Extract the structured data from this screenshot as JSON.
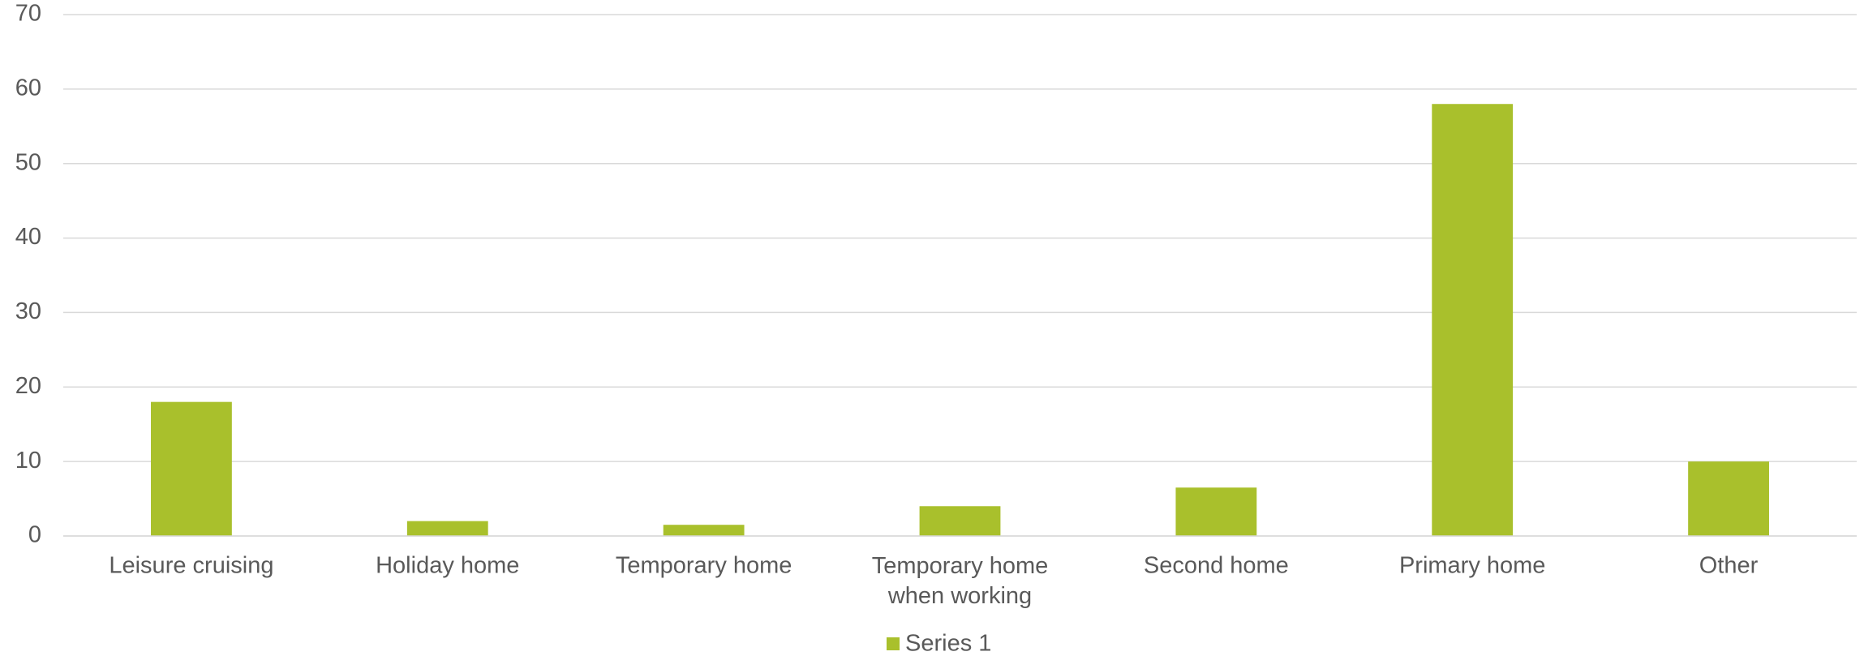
{
  "chart_data": {
    "type": "bar",
    "categories": [
      "Leisure cruising",
      "Holiday home",
      "Temporary home",
      "Temporary home when working",
      "Second home",
      "Primary home",
      "Other"
    ],
    "series": [
      {
        "name": "Series 1",
        "color": "#a9c02c",
        "values": [
          18,
          2,
          1.5,
          4,
          6.5,
          58,
          10
        ]
      }
    ],
    "ylim": [
      0,
      70
    ],
    "yticks": [
      0,
      10,
      20,
      30,
      40,
      50,
      60,
      70
    ],
    "grid": true,
    "legend": "bottom"
  }
}
